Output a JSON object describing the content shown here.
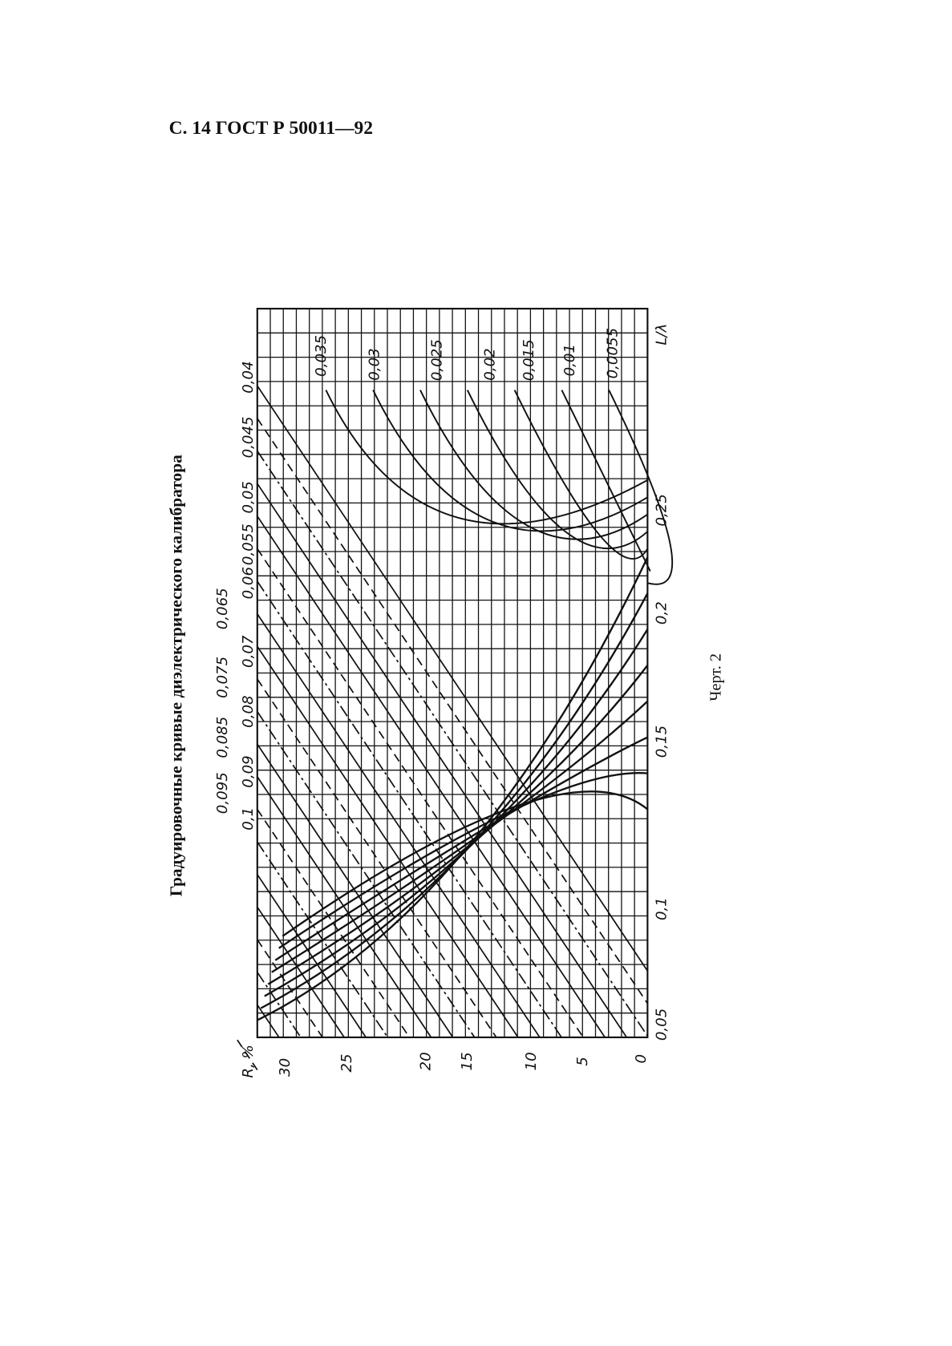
{
  "header": "С. 14 ГОСТ Р 50011—92",
  "title": "Градуировочные кривые диэлектрического калибратора",
  "figure": {
    "top_labels": [
      "0,04",
      "0,045",
      "0,05",
      "0,055",
      "0,06",
      "0,065",
      "0,07",
      "0,075",
      "0,08",
      "0,085",
      "0,09",
      "0,095",
      "0,1"
    ],
    "curve_labels": [
      "0,035",
      "0,03",
      "0,025",
      "0,02",
      "0,015",
      "0,01",
      "0,0055"
    ],
    "x_axis_label": "L/λ",
    "x_ticks": [
      "0,25",
      "0,2",
      "0,15",
      "0,1",
      "0,05"
    ],
    "y_axis_label": "R, %",
    "y_ticks": [
      "30",
      "25",
      "20",
      "15",
      "10",
      "5",
      "0"
    ]
  },
  "caption": "Черт. 2"
}
